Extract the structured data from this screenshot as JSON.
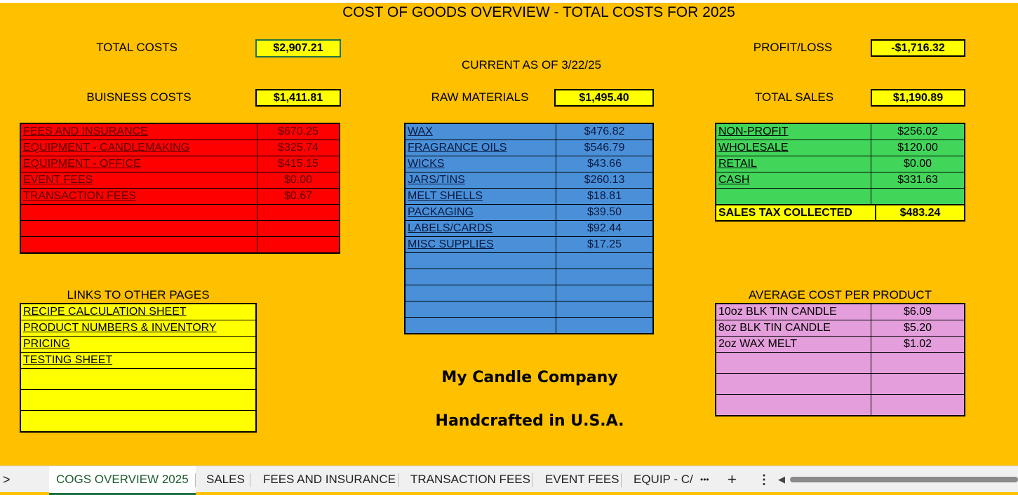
{
  "title": "COST OF GOODS OVERVIEW - TOTAL COSTS FOR 2025",
  "current_as_of": "CURRENT AS OF 3/22/25",
  "summary": {
    "total_costs_label": "TOTAL COSTS",
    "total_costs_value": "$2,907.21",
    "business_costs_label": "BUISNESS COSTS",
    "business_costs_value": "$1,411.81",
    "raw_materials_label": "RAW MATERIALS",
    "raw_materials_value": "$1,495.40",
    "profit_loss_label": "PROFIT/LOSS",
    "profit_loss_value": "-$1,716.32",
    "total_sales_label": "TOTAL SALES",
    "total_sales_value": "$1,190.89"
  },
  "business_costs": [
    {
      "name": "FEES AND INSURANCE",
      "value": "$670.25"
    },
    {
      "name": "EQUIPMENT - CANDLEMAKING",
      "value": "$325.74"
    },
    {
      "name": "EQUIPMENT - OFFICE",
      "value": "$415.15"
    },
    {
      "name": "EVENT FEES",
      "value": "$0.00"
    },
    {
      "name": "TRANSACTION FEES",
      "value": "$0.67"
    }
  ],
  "raw_materials": [
    {
      "name": "WAX",
      "value": "$476.82"
    },
    {
      "name": "FRAGRANCE OILS",
      "value": "$546.79"
    },
    {
      "name": "WICKS",
      "value": "$43.66"
    },
    {
      "name": "JARS/TINS",
      "value": "$260.13"
    },
    {
      "name": "MELT SHELLS",
      "value": "$18.81"
    },
    {
      "name": "PACKAGING",
      "value": "$39.50"
    },
    {
      "name": "LABELS/CARDS",
      "value": "$92.44"
    },
    {
      "name": "MISC SUPPLIES",
      "value": "$17.25"
    }
  ],
  "sales": [
    {
      "name": "NON-PROFIT",
      "value": "$256.02"
    },
    {
      "name": "WHOLESALE",
      "value": "$120.00"
    },
    {
      "name": "RETAIL",
      "value": "$0.00"
    },
    {
      "name": "CASH",
      "value": "$331.63"
    }
  ],
  "sales_tax": {
    "label": "SALES TAX COLLECTED",
    "value": "$483.24"
  },
  "links": {
    "header": "LINKS TO OTHER PAGES",
    "items": [
      "RECIPE CALCULATION SHEET",
      "PRODUCT NUMBERS & INVENTORY",
      "PRICING",
      "TESTING SHEET"
    ]
  },
  "avg_cost": {
    "header": "AVERAGE COST PER PRODUCT",
    "items": [
      {
        "name": "10oz BLK TIN CANDLE",
        "value": "$6.09"
      },
      {
        "name": "8oz BLK TIN CANDLE",
        "value": "$5.20"
      },
      {
        "name": "2oz WAX MELT",
        "value": "$1.02"
      }
    ]
  },
  "brand": {
    "name": "My Candle Company",
    "tagline": "Handcrafted in U.S.A."
  },
  "sheet_tabs": {
    "nav_left": ">",
    "tabs": [
      "COGS OVERVIEW 2025",
      "SALES",
      "FEES AND INSURANCE",
      "TRANSACTION FEES",
      "EVENT FEES",
      "EQUIP - C/"
    ],
    "more": "•••",
    "add": "+",
    "menu": "⋮",
    "scroll_left": "◀"
  }
}
